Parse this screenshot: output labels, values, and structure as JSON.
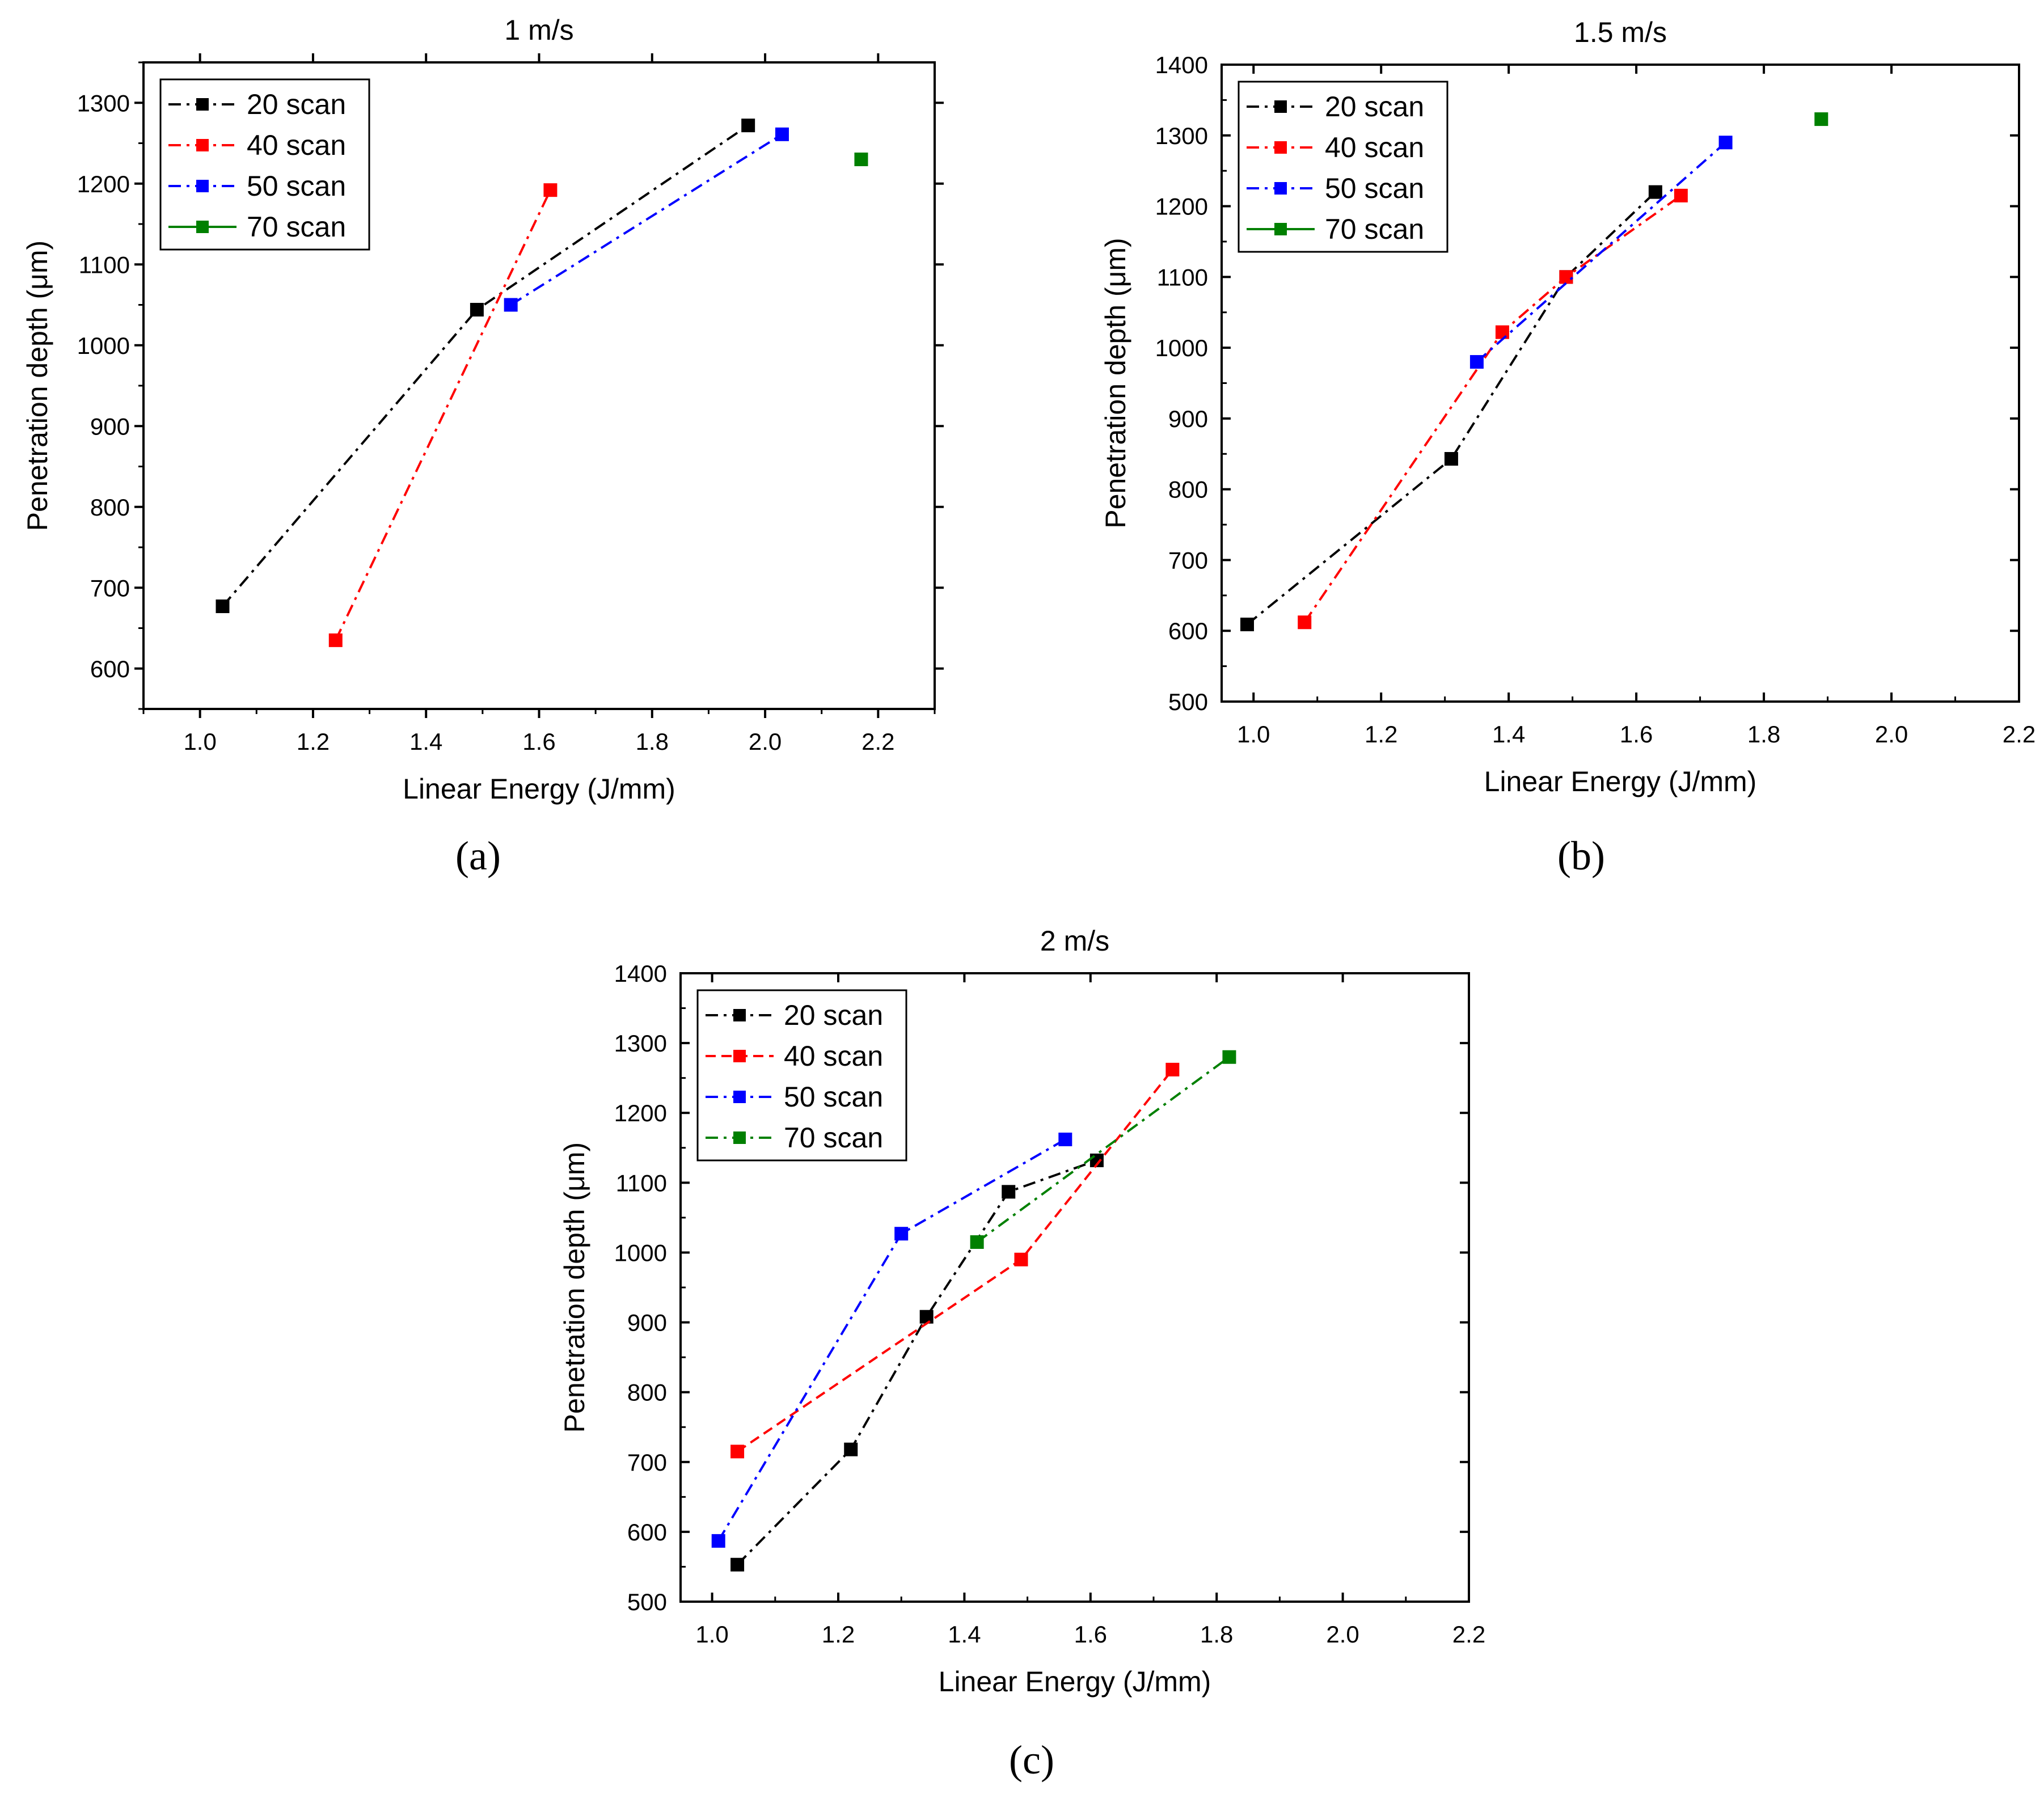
{
  "figure": {
    "captions": [
      "(a)",
      "(b)",
      "(c)"
    ]
  },
  "chart_data": [
    {
      "type": "line",
      "title": "1 m/s",
      "xlabel": "Linear Energy (J/mm)",
      "ylabel": "Penetration depth (μm)",
      "xlim": [
        0.9,
        2.3
      ],
      "ylim": [
        550,
        1350
      ],
      "xticks": [
        "1.0",
        "1.2",
        "1.4",
        "1.6",
        "1.8",
        "2.0",
        "2.2"
      ],
      "yticks": [
        "600",
        "700",
        "800",
        "900",
        "1000",
        "1100",
        "1200",
        "1300"
      ],
      "legend_position": "top-left",
      "series": [
        {
          "name": "20 scan",
          "color": "#000000",
          "dash": "dashdot",
          "x": [
            1.04,
            1.49,
            1.97
          ],
          "y": [
            677,
            1044,
            1272
          ]
        },
        {
          "name": "40 scan",
          "color": "#ff0000",
          "dash": "dashdot",
          "x": [
            1.24,
            1.62
          ],
          "y": [
            635,
            1192
          ]
        },
        {
          "name": "50 scan",
          "color": "#0000ff",
          "dash": "dashdot",
          "x": [
            1.55,
            2.03
          ],
          "y": [
            1050,
            1261
          ]
        },
        {
          "name": "70 scan",
          "color": "#008000",
          "dash": "solid",
          "x": [
            2.17
          ],
          "y": [
            1230
          ]
        }
      ]
    },
    {
      "type": "line",
      "title": "1.5 m/s",
      "xlabel": "Linear Energy (J/mm)",
      "ylabel": "Penetration depth (μm)",
      "xlim": [
        0.95,
        2.2
      ],
      "ylim": [
        500,
        1400
      ],
      "xticks": [
        "1.0",
        "1.2",
        "1.4",
        "1.6",
        "1.8",
        "2.0",
        "2.2"
      ],
      "yticks": [
        "500",
        "600",
        "700",
        "800",
        "900",
        "1000",
        "1100",
        "1200",
        "1300",
        "1400"
      ],
      "legend_position": "top-left",
      "series": [
        {
          "name": "20 scan",
          "color": "#000000",
          "dash": "dashdot",
          "x": [
            0.99,
            1.31,
            1.49,
            1.63
          ],
          "y": [
            609,
            843,
            1100,
            1220
          ]
        },
        {
          "name": "40 scan",
          "color": "#ff0000",
          "dash": "dashdot",
          "x": [
            1.08,
            1.39,
            1.49,
            1.67
          ],
          "y": [
            612,
            1022,
            1100,
            1215
          ]
        },
        {
          "name": "50 scan",
          "color": "#0000ff",
          "dash": "dashdot",
          "x": [
            1.35,
            1.74
          ],
          "y": [
            980,
            1290
          ]
        },
        {
          "name": "70 scan",
          "color": "#008000",
          "dash": "solid",
          "x": [
            1.89
          ],
          "y": [
            1323
          ]
        }
      ]
    },
    {
      "type": "line",
      "title": "2 m/s",
      "xlabel": "Linear Energy (J/mm)",
      "ylabel": "Penetration depth (μm)",
      "xlim": [
        0.95,
        2.2
      ],
      "ylim": [
        500,
        1400
      ],
      "xticks": [
        "1.0",
        "1.2",
        "1.4",
        "1.6",
        "1.8",
        "2.0",
        "2.2"
      ],
      "yticks": [
        "500",
        "600",
        "700",
        "800",
        "900",
        "1000",
        "1100",
        "1200",
        "1300",
        "1400"
      ],
      "legend_position": "top-left",
      "series": [
        {
          "name": "20 scan",
          "color": "#000000",
          "dash": "dashdot",
          "x": [
            1.04,
            1.22,
            1.34,
            1.47,
            1.61
          ],
          "y": [
            553,
            718,
            908,
            1087,
            1132
          ]
        },
        {
          "name": "40 scan",
          "color": "#ff0000",
          "dash": "dashed",
          "x": [
            1.04,
            1.49,
            1.73
          ],
          "y": [
            715,
            990,
            1262
          ]
        },
        {
          "name": "50 scan",
          "color": "#0000ff",
          "dash": "dashdot",
          "x": [
            1.01,
            1.3,
            1.56
          ],
          "y": [
            587,
            1027,
            1162
          ]
        },
        {
          "name": "70 scan",
          "color": "#008000",
          "dash": "dashdot",
          "x": [
            1.42,
            1.82
          ],
          "y": [
            1015,
            1280
          ]
        }
      ]
    }
  ]
}
